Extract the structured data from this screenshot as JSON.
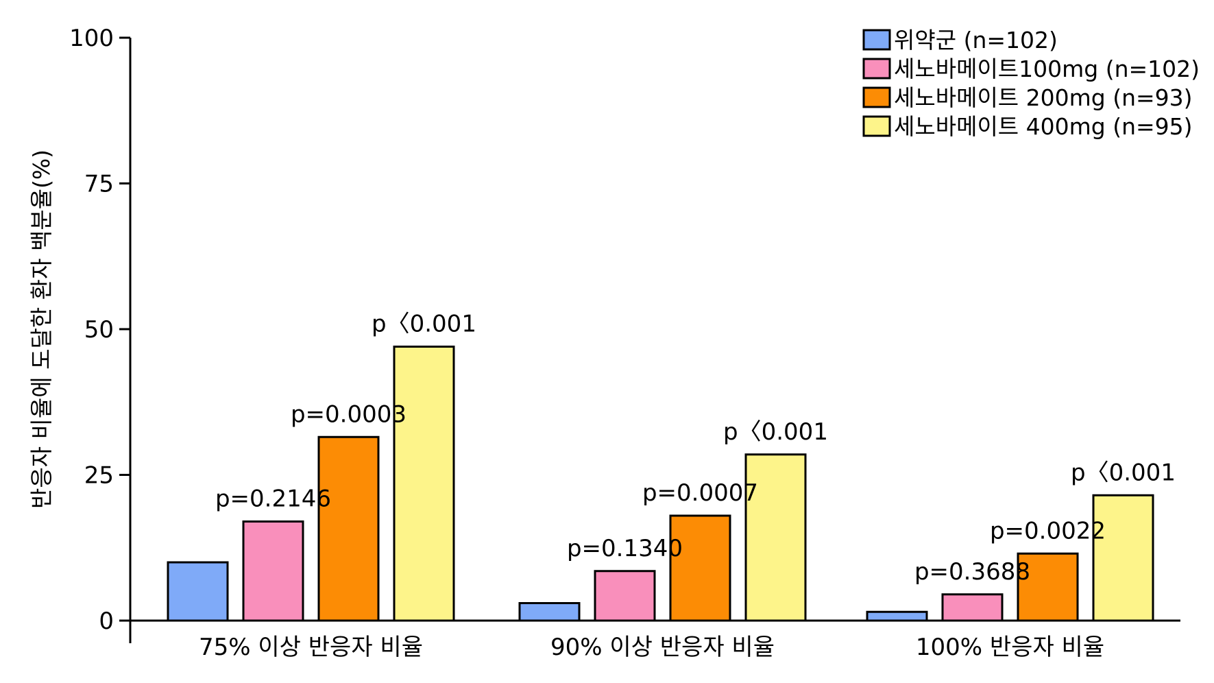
{
  "colors": {
    "placebo": "#7faaf8",
    "dose_100": "#f98fbb",
    "dose_200": "#fc8c05",
    "dose_400": "#fdf48a",
    "axis": "#000000"
  },
  "chart_data": {
    "type": "bar",
    "title": "",
    "xlabel": "",
    "ylabel": "반응자 비율에 도달한 환자 백분율(%)",
    "ylim": [
      0,
      100
    ],
    "yticks": [
      "0",
      "25",
      "50",
      "75",
      "100"
    ],
    "categories": [
      "75% 이상 반응자 비율",
      "90% 이상 반응자 비율",
      "100% 반응자 비율"
    ],
    "legend_position": "top-right",
    "grid": false,
    "series": [
      {
        "name": "위약군 (n=102)",
        "color_key": "placebo",
        "values": [
          10,
          3,
          1.5
        ],
        "annotations": [
          "",
          "",
          ""
        ]
      },
      {
        "name": "세노바메이트100mg (n=102)",
        "color_key": "dose_100",
        "values": [
          17,
          8.5,
          4.5
        ],
        "annotations": [
          "p=0.2146",
          "p=0.1340",
          "p=0.3688"
        ]
      },
      {
        "name": "세노바메이트 200mg (n=93)",
        "color_key": "dose_200",
        "values": [
          31.5,
          18,
          11.5
        ],
        "annotations": [
          "p=0.0003",
          "p=0.0007",
          "p=0.0022"
        ]
      },
      {
        "name": "세노바메이트 400mg (n=95)",
        "color_key": "dose_400",
        "values": [
          47,
          28.5,
          21.5
        ],
        "annotations": [
          "p〈0.001",
          "p〈0.001",
          "p〈0.001"
        ]
      }
    ]
  }
}
